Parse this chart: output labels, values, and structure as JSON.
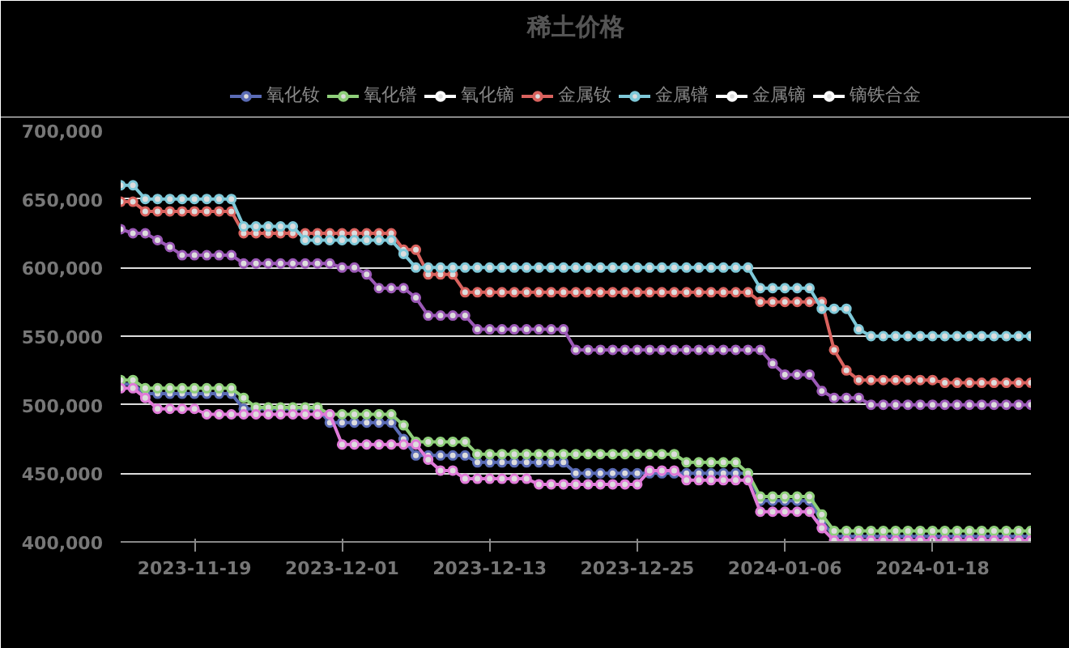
{
  "chart_data": {
    "type": "line",
    "title": "稀土价格",
    "x": [
      "2023-11-13",
      "2023-11-14",
      "2023-11-15",
      "2023-11-16",
      "2023-11-17",
      "2023-11-18",
      "2023-11-19",
      "2023-11-20",
      "2023-11-21",
      "2023-11-22",
      "2023-11-23",
      "2023-11-24",
      "2023-11-25",
      "2023-11-26",
      "2023-11-27",
      "2023-11-28",
      "2023-11-29",
      "2023-11-30",
      "2023-12-01",
      "2023-12-02",
      "2023-12-03",
      "2023-12-04",
      "2023-12-05",
      "2023-12-06",
      "2023-12-07",
      "2023-12-08",
      "2023-12-09",
      "2023-12-10",
      "2023-12-11",
      "2023-12-12",
      "2023-12-13",
      "2023-12-14",
      "2023-12-15",
      "2023-12-16",
      "2023-12-17",
      "2023-12-18",
      "2023-12-19",
      "2023-12-20",
      "2023-12-21",
      "2023-12-22",
      "2023-12-23",
      "2023-12-24",
      "2023-12-25",
      "2023-12-26",
      "2023-12-27",
      "2023-12-28",
      "2023-12-29",
      "2023-12-30",
      "2023-12-31",
      "2024-01-01",
      "2024-01-02",
      "2024-01-03",
      "2024-01-04",
      "2024-01-05",
      "2024-01-06",
      "2024-01-07",
      "2024-01-08",
      "2024-01-09",
      "2024-01-10",
      "2024-01-11",
      "2024-01-12",
      "2024-01-13",
      "2024-01-14",
      "2024-01-15",
      "2024-01-16",
      "2024-01-17",
      "2024-01-18",
      "2024-01-19",
      "2024-01-20",
      "2024-01-21",
      "2024-01-22",
      "2024-01-23",
      "2024-01-24",
      "2024-01-25",
      "2024-01-26"
    ],
    "series": [
      {
        "name": "氧化钕",
        "color": "#5a6bb5",
        "values": [
          515000,
          515000,
          508000,
          508000,
          508000,
          508000,
          508000,
          508000,
          508000,
          508000,
          497000,
          497000,
          497000,
          497000,
          497000,
          497000,
          497000,
          487000,
          487000,
          487000,
          487000,
          487000,
          487000,
          475000,
          463000,
          463000,
          463000,
          463000,
          463000,
          458000,
          458000,
          458000,
          458000,
          458000,
          458000,
          458000,
          458000,
          450000,
          450000,
          450000,
          450000,
          450000,
          450000,
          450000,
          450000,
          450000,
          450000,
          450000,
          450000,
          450000,
          450000,
          450000,
          430000,
          430000,
          430000,
          430000,
          430000,
          415000,
          404000,
          404000,
          404000,
          404000,
          404000,
          404000,
          404000,
          404000,
          404000,
          404000,
          404000,
          404000,
          404000,
          404000,
          404000,
          404000,
          404000
        ]
      },
      {
        "name": "氧化镨",
        "color": "#8fcf7a",
        "values": [
          518000,
          518000,
          512000,
          512000,
          512000,
          512000,
          512000,
          512000,
          512000,
          512000,
          505000,
          498000,
          498000,
          498000,
          498000,
          498000,
          498000,
          493000,
          493000,
          493000,
          493000,
          493000,
          493000,
          485000,
          473000,
          473000,
          473000,
          473000,
          473000,
          464000,
          464000,
          464000,
          464000,
          464000,
          464000,
          464000,
          464000,
          464000,
          464000,
          464000,
          464000,
          464000,
          464000,
          464000,
          464000,
          464000,
          458000,
          458000,
          458000,
          458000,
          458000,
          450000,
          433000,
          433000,
          433000,
          433000,
          433000,
          420000,
          408000,
          408000,
          408000,
          408000,
          408000,
          408000,
          408000,
          408000,
          408000,
          408000,
          408000,
          408000,
          408000,
          408000,
          408000,
          408000,
          408000
        ]
      },
      {
        "name": "氧化镝",
        "color": "#ffffff",
        "values": [
          null,
          null,
          null,
          null,
          null,
          null,
          null,
          null,
          null,
          null,
          null,
          null,
          null,
          null,
          null,
          null,
          null,
          null,
          null,
          null,
          null,
          null,
          null,
          null,
          null,
          null,
          null,
          null,
          null,
          null,
          null,
          null,
          null,
          null,
          null,
          null,
          null,
          null,
          null,
          null,
          null,
          null,
          null,
          null,
          null,
          null,
          null,
          null,
          null,
          null,
          null,
          null,
          null,
          null,
          null,
          null,
          null,
          null,
          null,
          null,
          null,
          null,
          null,
          null,
          null,
          null,
          null,
          null,
          null,
          null,
          null,
          null,
          null,
          null,
          null
        ]
      },
      {
        "name": "金属钕",
        "color": "#d9625e",
        "values": [
          648000,
          648000,
          641000,
          641000,
          641000,
          641000,
          641000,
          641000,
          641000,
          641000,
          625000,
          625000,
          625000,
          625000,
          625000,
          625000,
          625000,
          625000,
          625000,
          625000,
          625000,
          625000,
          625000,
          613000,
          613000,
          595000,
          595000,
          595000,
          582000,
          582000,
          582000,
          582000,
          582000,
          582000,
          582000,
          582000,
          582000,
          582000,
          582000,
          582000,
          582000,
          582000,
          582000,
          582000,
          582000,
          582000,
          582000,
          582000,
          582000,
          582000,
          582000,
          582000,
          575000,
          575000,
          575000,
          575000,
          575000,
          575000,
          540000,
          525000,
          518000,
          518000,
          518000,
          518000,
          518000,
          518000,
          518000,
          516000,
          516000,
          516000,
          516000,
          516000,
          516000,
          516000,
          516000
        ]
      },
      {
        "name": "金属镨",
        "color": "#7ec8d8",
        "values": [
          660000,
          660000,
          650000,
          650000,
          650000,
          650000,
          650000,
          650000,
          650000,
          650000,
          630000,
          630000,
          630000,
          630000,
          630000,
          620000,
          620000,
          620000,
          620000,
          620000,
          620000,
          620000,
          620000,
          610000,
          600000,
          600000,
          600000,
          600000,
          600000,
          600000,
          600000,
          600000,
          600000,
          600000,
          600000,
          600000,
          600000,
          600000,
          600000,
          600000,
          600000,
          600000,
          600000,
          600000,
          600000,
          600000,
          600000,
          600000,
          600000,
          600000,
          600000,
          600000,
          585000,
          585000,
          585000,
          585000,
          585000,
          570000,
          570000,
          570000,
          555000,
          550000,
          550000,
          550000,
          550000,
          550000,
          550000,
          550000,
          550000,
          550000,
          550000,
          550000,
          550000,
          550000,
          550000
        ]
      },
      {
        "name": "金属镝",
        "color": "#ffffff",
        "values": [
          null,
          null,
          null,
          null,
          null,
          null,
          null,
          null,
          null,
          null,
          null,
          null,
          null,
          null,
          null,
          null,
          null,
          null,
          null,
          null,
          null,
          null,
          null,
          null,
          null,
          null,
          null,
          null,
          null,
          null,
          null,
          null,
          null,
          null,
          null,
          null,
          null,
          null,
          null,
          null,
          null,
          null,
          null,
          null,
          null,
          null,
          null,
          null,
          null,
          null,
          null,
          null,
          null,
          null,
          null,
          null,
          null,
          null,
          null,
          null,
          null,
          null,
          null,
          null,
          null,
          null,
          null,
          null,
          null,
          null,
          null,
          null,
          null,
          null,
          null
        ]
      },
      {
        "name": "镝铁合金",
        "color": "#ffffff",
        "values": [
          null,
          null,
          null,
          null,
          null,
          null,
          null,
          null,
          null,
          null,
          null,
          null,
          null,
          null,
          null,
          null,
          null,
          null,
          null,
          null,
          null,
          null,
          null,
          null,
          null,
          null,
          null,
          null,
          null,
          null,
          null,
          null,
          null,
          null,
          null,
          null,
          null,
          null,
          null,
          null,
          null,
          null,
          null,
          null,
          null,
          null,
          null,
          null,
          null,
          null,
          null,
          null,
          null,
          null,
          null,
          null,
          null,
          null,
          null,
          null,
          null,
          null,
          null,
          null,
          null,
          null,
          null,
          null,
          null,
          null,
          null,
          null,
          null,
          null,
          null
        ]
      },
      {
        "color": "#9b59b6",
        "values": [
          628000,
          625000,
          625000,
          620000,
          615000,
          609000,
          609000,
          609000,
          609000,
          609000,
          603000,
          603000,
          603000,
          603000,
          603000,
          603000,
          603000,
          603000,
          600000,
          600000,
          595000,
          585000,
          585000,
          585000,
          578000,
          565000,
          565000,
          565000,
          565000,
          555000,
          555000,
          555000,
          555000,
          555000,
          555000,
          555000,
          555000,
          540000,
          540000,
          540000,
          540000,
          540000,
          540000,
          540000,
          540000,
          540000,
          540000,
          540000,
          540000,
          540000,
          540000,
          540000,
          540000,
          530000,
          522000,
          522000,
          522000,
          510000,
          505000,
          505000,
          505000,
          500000,
          500000,
          500000,
          500000,
          500000,
          500000,
          500000,
          500000,
          500000,
          500000,
          500000,
          500000,
          500000,
          500000
        ]
      },
      {
        "color": "#e07ad8",
        "values": [
          512000,
          512000,
          505000,
          497000,
          497000,
          497000,
          497000,
          493000,
          493000,
          493000,
          493000,
          493000,
          493000,
          493000,
          493000,
          493000,
          493000,
          493000,
          471000,
          471000,
          471000,
          471000,
          471000,
          471000,
          471000,
          460000,
          452000,
          452000,
          446000,
          446000,
          446000,
          446000,
          446000,
          446000,
          442000,
          442000,
          442000,
          442000,
          442000,
          442000,
          442000,
          442000,
          442000,
          452000,
          452000,
          452000,
          445000,
          445000,
          445000,
          445000,
          445000,
          445000,
          422000,
          422000,
          422000,
          422000,
          422000,
          410000,
          401000,
          401000,
          401000,
          401000,
          401000,
          401000,
          401000,
          401000,
          401000,
          401000,
          401000,
          401000,
          401000,
          401000,
          401000,
          401000,
          401000
        ]
      }
    ],
    "xlim": [
      "2023-11-13",
      "2024-01-26"
    ],
    "xticks": [
      "2023-11-19",
      "2023-12-01",
      "2023-12-13",
      "2023-12-25",
      "2024-01-06",
      "2024-01-18"
    ],
    "ylim": [
      400000,
      700000
    ],
    "yticks": [
      {
        "value": 400000,
        "label": "400,000"
      },
      {
        "value": 450000,
        "label": "450,000"
      },
      {
        "value": 500000,
        "label": "500,000"
      },
      {
        "value": 550000,
        "label": "550,000"
      },
      {
        "value": 600000,
        "label": "600,000"
      },
      {
        "value": 650000,
        "label": "650,000"
      },
      {
        "value": 700000,
        "label": "700,000"
      }
    ],
    "grid": "y",
    "legend": "top",
    "marker": "circle",
    "line_style": "solid"
  }
}
